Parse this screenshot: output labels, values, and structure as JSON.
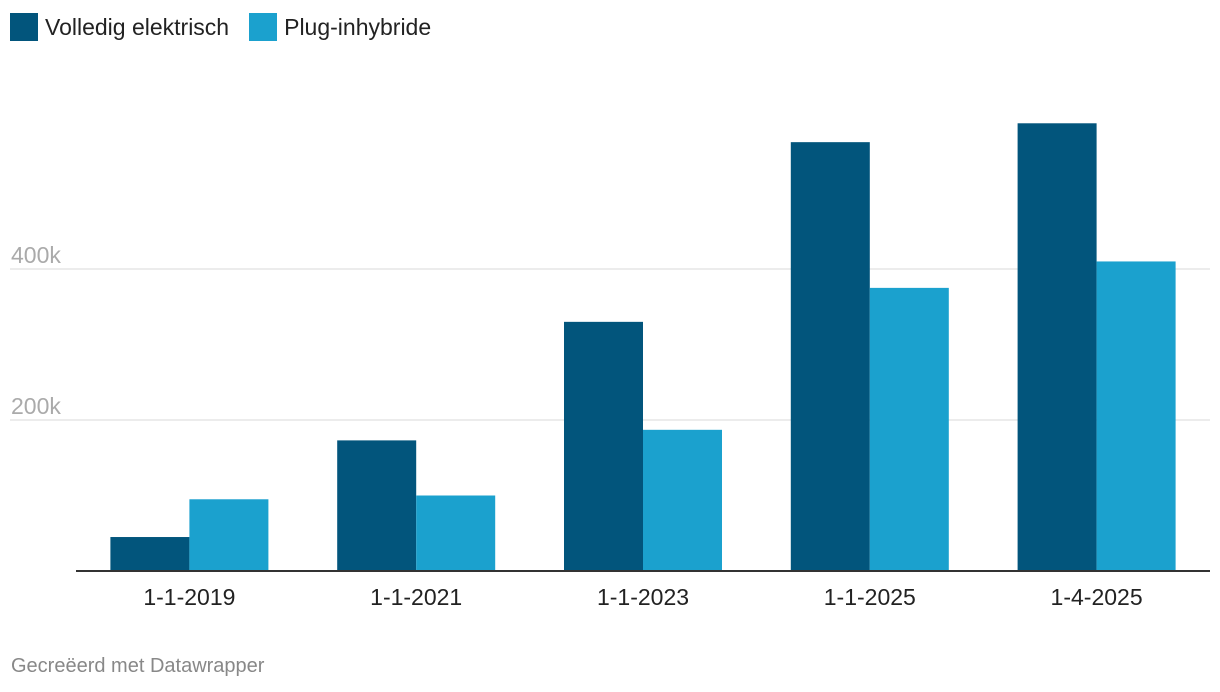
{
  "chart_data": {
    "type": "bar",
    "title": "",
    "xlabel": "",
    "ylabel": "",
    "categories": [
      "1-1-2019",
      "1-1-2021",
      "1-1-2023",
      "1-1-2025",
      "1-4-2025"
    ],
    "series": [
      {
        "name": "Volledig elektrisch",
        "color": "#02557c",
        "values": [
          45000,
          173000,
          330000,
          568000,
          593000
        ]
      },
      {
        "name": "Plug-inhybride",
        "color": "#1ba1ce",
        "values": [
          95000,
          100000,
          187000,
          375000,
          410000
        ]
      }
    ],
    "ylim": [
      0,
      600000
    ],
    "yticks": [
      {
        "value": 200000,
        "label": "200k"
      },
      {
        "value": 400000,
        "label": "400k"
      }
    ],
    "grid": true,
    "legend_position": "top-left",
    "colors": {
      "gridline": "#e5e5e5",
      "baseline": "#333333",
      "tick_label": "#aaaaaa",
      "x_label": "#222222"
    }
  },
  "footer": {
    "credit": "Gecreëerd met Datawrapper"
  }
}
